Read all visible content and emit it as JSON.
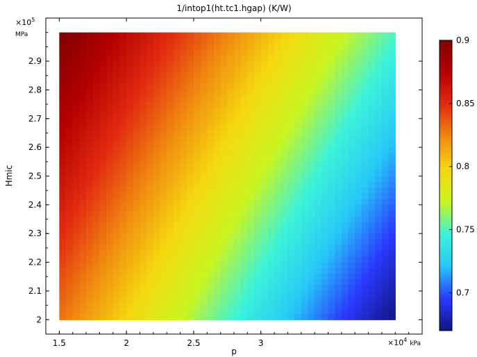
{
  "chart_data": {
    "type": "heatmap",
    "title": "1/intop1(ht.tc1.hgap) (K/W)",
    "xlabel": "p",
    "ylabel": "Hmic",
    "x_multiplier": "×10",
    "x_exponent": "4",
    "x_unit": "kPa",
    "y_multiplier": "×10",
    "y_exponent": "5",
    "y_unit": "MPa",
    "x_ticks": [
      "1.5",
      "2",
      "2.5",
      "3"
    ],
    "y_ticks": [
      "2",
      "2.1",
      "2.2",
      "2.3",
      "2.4",
      "2.5",
      "2.6",
      "2.7",
      "2.8",
      "2.9"
    ],
    "xlim": [
      1.4,
      4.2
    ],
    "ylim": [
      1.95,
      3.05
    ],
    "data_extent": {
      "x": [
        1.5,
        4.0
      ],
      "y": [
        2.0,
        3.0
      ]
    },
    "colorbar": {
      "min": 0.67,
      "max": 0.9,
      "ticks": [
        "0.7",
        "0.75",
        "0.8",
        "0.85",
        "0.9"
      ],
      "colormap": [
        "#12147d",
        "#2a3aff",
        "#27c8f7",
        "#3cf3d9",
        "#c9f520",
        "#f5d80f",
        "#f08a10",
        "#e22c10",
        "#b50000",
        "#7f0000"
      ]
    },
    "corner_values": {
      "p_min_H_max": 0.9,
      "p_min_H_min": 0.83,
      "p_max_H_max": 0.75,
      "p_max_H_min": 0.67
    }
  }
}
